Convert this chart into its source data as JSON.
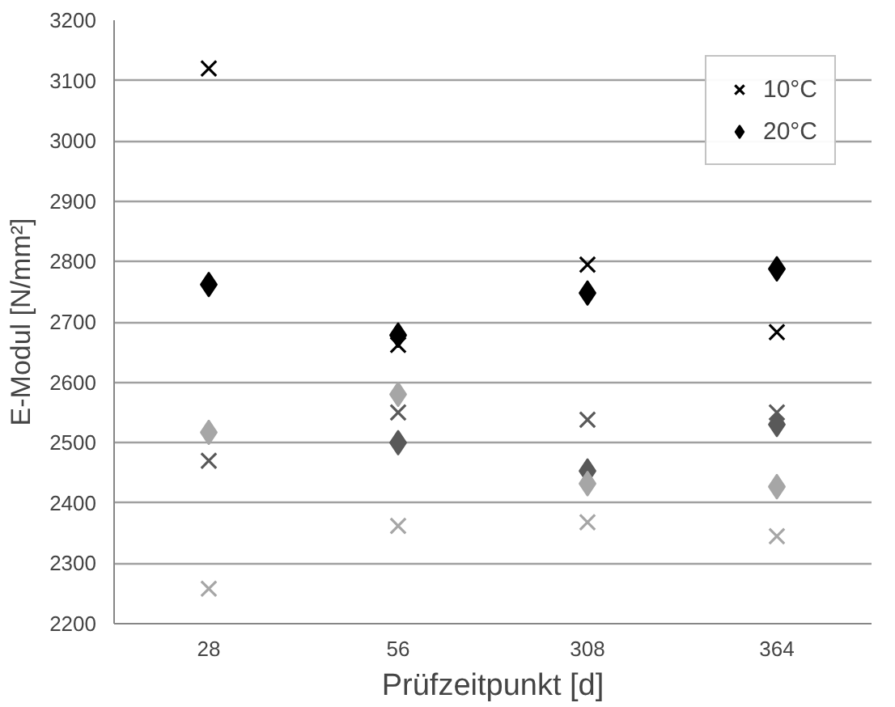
{
  "chart_data": {
    "type": "scatter",
    "xlabel": "Prüfzeitpunkt [d]",
    "ylabel": "E-Modul [N/mm²]",
    "categories": [
      "28",
      "56",
      "308",
      "364"
    ],
    "ylim": [
      2200,
      3200
    ],
    "yticks": [
      2200,
      2300,
      2400,
      2500,
      2600,
      2700,
      2800,
      2900,
      3000,
      3100,
      3200
    ],
    "grid": "y",
    "legend": "top right",
    "series": [
      {
        "name": "10°C",
        "color": "#000000",
        "marker": "cross",
        "values": [
          3120,
          2662,
          2795,
          2683
        ]
      },
      {
        "name": "20°C",
        "color": "#000000",
        "marker": "diamond",
        "values": [
          2762,
          2678,
          2748,
          2788
        ]
      },
      {
        "color": "#595959",
        "marker": "cross",
        "values": [
          2470,
          2550,
          2538,
          2550
        ]
      },
      {
        "color": "#595959",
        "marker": "diamond",
        "values": [
          null,
          2500,
          2453,
          2530
        ]
      },
      {
        "color": "#a6a6a6",
        "marker": "cross",
        "values": [
          2258,
          2362,
          2368,
          2345
        ]
      },
      {
        "color": "#a6a6a6",
        "marker": "diamond",
        "values": [
          2517,
          2580,
          2432,
          2427
        ]
      }
    ]
  }
}
